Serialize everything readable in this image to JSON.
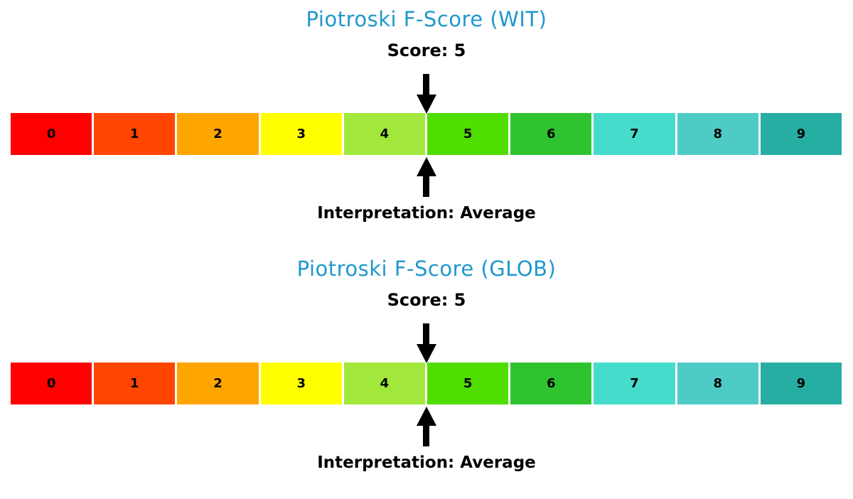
{
  "colors": {
    "background": "#FFFFFF",
    "title": "#2098CD",
    "text": "#000000",
    "arrow": "#000000"
  },
  "scale": {
    "min": 0,
    "max": 10,
    "segments": [
      {
        "label": "0",
        "color": "#FF0000"
      },
      {
        "label": "1",
        "color": "#FF4500"
      },
      {
        "label": "2",
        "color": "#FFA500"
      },
      {
        "label": "3",
        "color": "#FFFF00"
      },
      {
        "label": "4",
        "color": "#A2E83C"
      },
      {
        "label": "5",
        "color": "#50DD00"
      },
      {
        "label": "6",
        "color": "#2FC42F"
      },
      {
        "label": "7",
        "color": "#46DCCB"
      },
      {
        "label": "8",
        "color": "#4FCBC6"
      },
      {
        "label": "9",
        "color": "#26AEA3"
      }
    ]
  },
  "charts": [
    {
      "title": "Piotroski F-Score (WIT)",
      "score_label": "Score: 5",
      "score": 5,
      "interpretation_label": "Interpretation: Average"
    },
    {
      "title": "Piotroski F-Score (GLOB)",
      "score_label": "Score: 5",
      "score": 5,
      "interpretation_label": "Interpretation: Average"
    }
  ],
  "chart_data": [
    {
      "type": "heatmap",
      "subtype": "score-gauge",
      "title": "Piotroski F-Score (WIT)",
      "subtitle": "Score: 5",
      "annotation": "Interpretation: Average",
      "categories": [
        "0",
        "1",
        "2",
        "3",
        "4",
        "5",
        "6",
        "7",
        "8",
        "9"
      ],
      "values": [
        0,
        1,
        2,
        3,
        4,
        5,
        6,
        7,
        8,
        9
      ],
      "score": 5,
      "marker_position": 5,
      "xlim": [
        0,
        10
      ],
      "cell_colors": [
        "#FF0000",
        "#FF4500",
        "#FFA500",
        "#FFFF00",
        "#A2E83C",
        "#50DD00",
        "#2FC42F",
        "#46DCCB",
        "#4FCBC6",
        "#26AEA3"
      ],
      "legend_position": "none",
      "grid": false
    },
    {
      "type": "heatmap",
      "subtype": "score-gauge",
      "title": "Piotroski F-Score (GLOB)",
      "subtitle": "Score: 5",
      "annotation": "Interpretation: Average",
      "categories": [
        "0",
        "1",
        "2",
        "3",
        "4",
        "5",
        "6",
        "7",
        "8",
        "9"
      ],
      "values": [
        0,
        1,
        2,
        3,
        4,
        5,
        6,
        7,
        8,
        9
      ],
      "score": 5,
      "marker_position": 5,
      "xlim": [
        0,
        10
      ],
      "cell_colors": [
        "#FF0000",
        "#FF4500",
        "#FFA500",
        "#FFFF00",
        "#A2E83C",
        "#50DD00",
        "#2FC42F",
        "#46DCCB",
        "#4FCBC6",
        "#26AEA3"
      ],
      "legend_position": "none",
      "grid": false
    }
  ]
}
